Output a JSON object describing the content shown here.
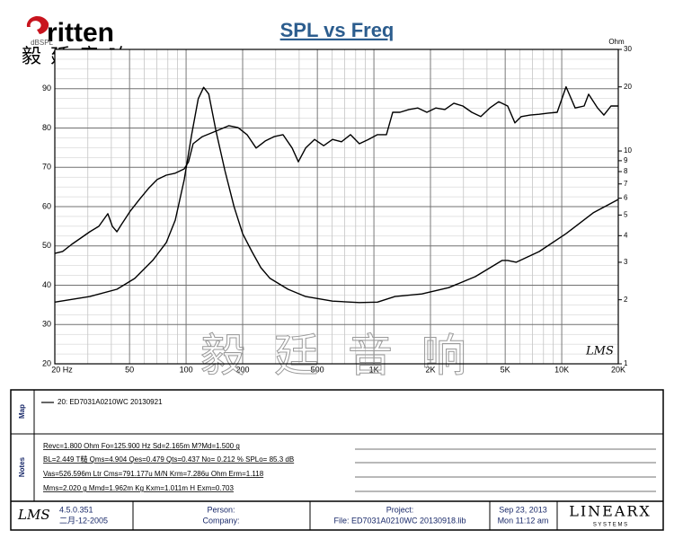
{
  "header": {
    "logo": "ritten",
    "logo_cn": "毅 廷 音 响"
  },
  "chart_data": {
    "type": "line",
    "title": "SPL vs Freq",
    "y_label": "dBSPL",
    "y2_label": "Ohm",
    "watermark": "毅 廷 音 响",
    "plot_logo": "LMS",
    "xscale": "log",
    "y2scale": "log",
    "grid": true,
    "xlim": [
      20,
      20000
    ],
    "xticks": [
      {
        "value": 20,
        "label": "20 Hz"
      },
      50,
      100,
      200,
      500,
      {
        "value": 1000,
        "label": "1K"
      },
      {
        "value": 2000,
        "label": "2K"
      },
      {
        "value": 5000,
        "label": "5K"
      },
      {
        "value": 10000,
        "label": "10K"
      },
      {
        "value": 20000,
        "label": "20K"
      }
    ],
    "ylim": [
      20,
      100
    ],
    "yticks": [
      20,
      30,
      40,
      50,
      60,
      70,
      80,
      90
    ],
    "y2lim": [
      1,
      30
    ],
    "y2ticks": [
      1,
      2,
      3,
      4,
      5,
      6,
      7,
      8,
      9,
      10,
      20,
      30
    ],
    "series": [
      {
        "color": "#000000",
        "x": [
          20,
          22,
          24.6,
          27.5,
          30.7,
          34.3,
          38.3,
          40.5,
          42.8,
          45.2,
          50.5,
          56.4,
          63,
          70.2,
          78.4,
          87.5,
          97.7,
          103,
          109,
          122,
          144,
          169,
          189,
          211,
          236,
          264,
          294,
          328,
          367,
          396,
          433,
          483,
          540,
          602,
          672,
          750,
          837,
          935,
          1044,
          1166,
          1259,
          1375,
          1535,
          1714,
          1913,
          2135,
          2386,
          2663,
          2974,
          3320,
          3707,
          4140,
          4622,
          5154,
          5635,
          6082,
          6794,
          7586,
          8470,
          9460,
          10550,
          11780,
          13160,
          13900,
          15520,
          16760,
          18300,
          20000
        ],
        "values": [
          48.1,
          48.6,
          50.4,
          52,
          53.6,
          55,
          58.2,
          55,
          53.6,
          55.4,
          58.9,
          61.8,
          64.6,
          66.9,
          68,
          68.5,
          69.6,
          71.4,
          76,
          77.8,
          79.2,
          80.6,
          80.1,
          78.3,
          74.9,
          76.7,
          77.8,
          78.3,
          74.9,
          71.4,
          74.9,
          77.1,
          75.5,
          77.1,
          76.5,
          78.3,
          76,
          77.1,
          78.3,
          78.3,
          84,
          84,
          84.7,
          85.1,
          84,
          85.1,
          84.7,
          86.3,
          85.6,
          84,
          82.9,
          85.1,
          86.7,
          85.6,
          81.3,
          82.9,
          83.3,
          83.5,
          83.8,
          84,
          90.5,
          85.1,
          85.6,
          88.6,
          85.1,
          83.3,
          85.6,
          85.6
        ]
      },
      {
        "color": "#000000",
        "axis": "y2",
        "x": [
          20,
          30.7,
          42.8,
          53.3,
          66.4,
          78.4,
          87.5,
          97.7,
          107,
          116,
          124,
          132,
          144,
          161,
          180,
          200,
          224,
          250,
          280,
          349,
          433,
          602,
          837,
          1044,
          1295,
          1800,
          2500,
          3470,
          4820,
          5154,
          5730,
          7586,
          10550,
          14700,
          20000
        ],
        "values": [
          1.95,
          2.07,
          2.24,
          2.52,
          3.06,
          3.71,
          4.73,
          7.33,
          11.9,
          17.6,
          19.9,
          18.5,
          12.5,
          8.08,
          5.48,
          4.09,
          3.37,
          2.83,
          2.52,
          2.24,
          2.07,
          1.97,
          1.94,
          1.95,
          2.07,
          2.13,
          2.28,
          2.57,
          3.06,
          3.06,
          3.0,
          3.37,
          4.09,
          5.12,
          5.92
        ]
      }
    ]
  },
  "map": {
    "label": "Map",
    "legend": "20: ED7031A0210WC   20130921"
  },
  "notes": {
    "label": "Notes",
    "lines": [
      "Revc=1.800 Ohm  Fo=125.900 Hz  Sd=2.165m M?Md=1.500 g",
      "BL=2.449 T糙  Qms=4.904  Qes=0.479  Qts=0.437  No= 0.212 %  SPLo= 85.3 dB",
      "Vas=526.596m Ltr  Cms=791.177u M/N  Krm=7.286u Ohm  Erm=1.118",
      "Mms=2.020 g  Mmd=1.962m Kg  Kxm=1.011m H  Exm=0.703"
    ]
  },
  "footer": {
    "logo": "LMS",
    "version": "4.5.0.351",
    "build_date": "二月-12-2005",
    "person": "Person:",
    "company": "Company:",
    "project": "Project:",
    "file": "File: ED7031A0210WC  20130918.lib",
    "date": "Sep 23, 2013",
    "time": "Mon 11:12 am",
    "brand": "LINEARX",
    "brand_sub": "S Y S T E M S"
  }
}
